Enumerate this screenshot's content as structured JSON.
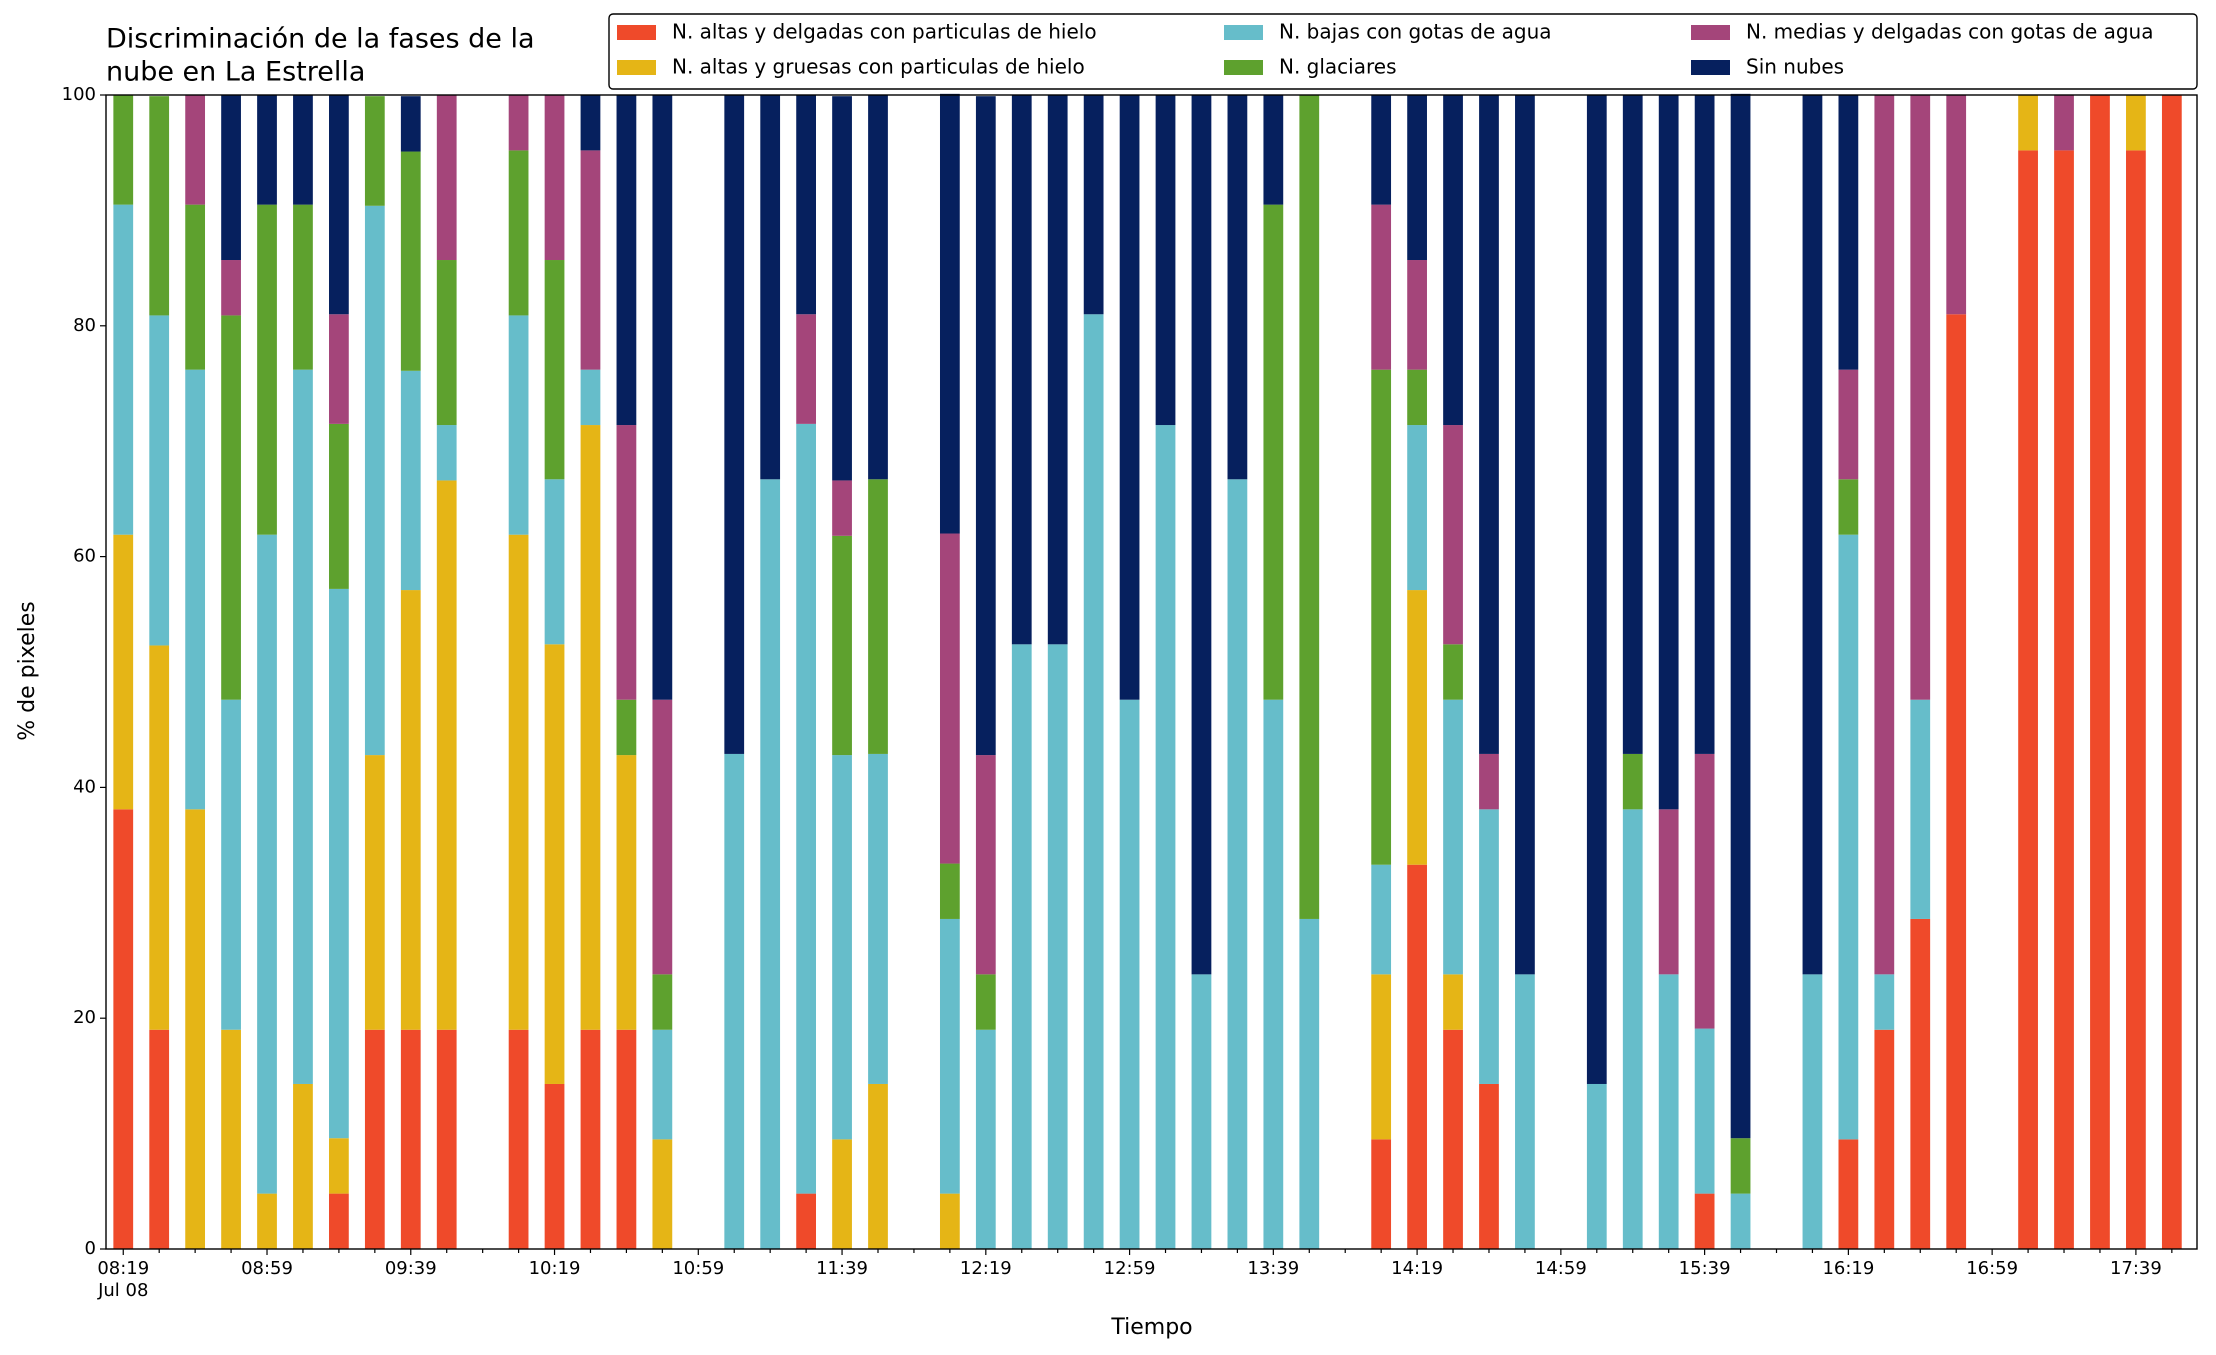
{
  "chart_data": {
    "type": "stacked_bar",
    "title": [
      "Discriminación de la fases de la",
      "nube en La Estrella"
    ],
    "xlabel": "Tiempo",
    "ylabel": "% de pixeles",
    "x_sublabel": "Jul 08",
    "categories": [
      "08:19",
      null,
      null,
      null,
      "08:59",
      null,
      null,
      null,
      "09:39",
      null,
      null,
      null,
      "10:19",
      null,
      null,
      null,
      "10:59",
      null,
      null,
      null,
      "11:39",
      null,
      null,
      null,
      "12:19",
      null,
      null,
      null,
      "12:59",
      null,
      null,
      null,
      "13:39",
      null,
      null,
      null,
      "14:19",
      null,
      null,
      null,
      "14:59",
      null,
      null,
      null,
      "15:39",
      null,
      null,
      null,
      "16:19",
      null,
      null,
      null,
      "16:59",
      null,
      null,
      null,
      "17:39",
      null
    ],
    "ylim": [
      0,
      100
    ],
    "yticks": [
      0,
      20,
      40,
      60,
      80,
      100
    ],
    "legend": "top-right",
    "series": [
      {
        "name": "N. altas y delgadas con particulas de hielo",
        "color": "#ef4a2a",
        "values": [
          38.1,
          19.0,
          0,
          0,
          0,
          0,
          4.8,
          19.0,
          19.0,
          19.0,
          null,
          19.0,
          14.3,
          19.0,
          19.0,
          0,
          null,
          0,
          0,
          4.8,
          0,
          0,
          null,
          0,
          0,
          0,
          0,
          0,
          0,
          0,
          0,
          0,
          0,
          0,
          null,
          9.5,
          33.3,
          19.0,
          14.3,
          0,
          null,
          0,
          0,
          0,
          4.8,
          0,
          null,
          0,
          9.5,
          19.0,
          28.6,
          81.0,
          null,
          95.2,
          95.2,
          100,
          95.2,
          100
        ]
      },
      {
        "name": "N. altas y gruesas con particulas de hielo",
        "color": "#e5b516",
        "values": [
          23.8,
          33.3,
          38.1,
          19.0,
          4.8,
          14.3,
          4.8,
          23.8,
          38.1,
          47.6,
          null,
          42.9,
          38.1,
          52.4,
          23.8,
          9.5,
          null,
          0,
          0,
          0,
          9.5,
          14.3,
          null,
          4.8,
          0,
          0,
          0,
          0,
          0,
          0,
          0,
          0,
          0,
          0,
          null,
          14.3,
          23.8,
          4.8,
          0,
          0,
          null,
          0,
          0,
          0,
          0,
          0,
          null,
          0,
          0,
          0,
          0,
          0,
          null,
          4.8,
          0,
          0,
          4.8,
          0
        ]
      },
      {
        "name": "N. bajas con gotas de agua",
        "color": "#66bdca",
        "values": [
          28.6,
          28.6,
          38.1,
          28.6,
          57.1,
          61.9,
          47.6,
          47.6,
          19.0,
          4.8,
          null,
          19.0,
          14.3,
          4.8,
          0,
          9.5,
          null,
          42.9,
          66.7,
          66.7,
          33.3,
          28.6,
          null,
          23.8,
          19.0,
          52.4,
          52.4,
          81.0,
          47.6,
          71.4,
          23.8,
          66.7,
          47.6,
          28.6,
          null,
          9.5,
          14.3,
          23.8,
          23.8,
          23.8,
          null,
          14.3,
          38.1,
          23.8,
          14.3,
          4.8,
          null,
          23.8,
          52.4,
          4.8,
          19.0,
          0,
          null,
          0,
          0,
          0,
          0,
          0
        ]
      },
      {
        "name": "N. glaciares",
        "color": "#5ea12e",
        "values": [
          9.5,
          19.0,
          14.3,
          33.3,
          28.6,
          14.3,
          14.3,
          9.5,
          19.0,
          14.3,
          null,
          14.3,
          19.0,
          0,
          4.8,
          4.8,
          null,
          0,
          0,
          0,
          19.0,
          23.8,
          null,
          4.8,
          4.8,
          0,
          0,
          0,
          0,
          0,
          0,
          0,
          42.9,
          71.4,
          null,
          42.9,
          4.8,
          4.8,
          0,
          0,
          null,
          0,
          4.8,
          0,
          0,
          4.8,
          null,
          0,
          4.8,
          0,
          0,
          0,
          null,
          0,
          0,
          0,
          0,
          0
        ]
      },
      {
        "name": "N. medias y delgadas con gotas de agua",
        "color": "#a4457a",
        "values": [
          0,
          0,
          9.5,
          4.8,
          0,
          0,
          9.5,
          0,
          0,
          14.3,
          null,
          4.8,
          14.3,
          19.0,
          23.8,
          23.8,
          null,
          0,
          0,
          9.5,
          4.8,
          0,
          null,
          28.6,
          19.0,
          0,
          0,
          0,
          0,
          0,
          0,
          0,
          0,
          0,
          null,
          14.3,
          9.5,
          19.0,
          4.8,
          0,
          null,
          0,
          0,
          14.3,
          23.8,
          0,
          null,
          0,
          9.5,
          76.2,
          52.4,
          19.0,
          null,
          0,
          4.8,
          0,
          0,
          0
        ]
      },
      {
        "name": "Sin nubes",
        "color": "#06205e",
        "values": [
          0,
          0,
          0,
          14.3,
          9.5,
          9.5,
          19.0,
          0,
          4.8,
          0,
          null,
          0,
          0,
          4.8,
          28.6,
          52.4,
          null,
          57.1,
          33.3,
          19.0,
          33.3,
          33.3,
          null,
          38.1,
          57.1,
          47.6,
          47.6,
          19.0,
          52.4,
          28.6,
          76.2,
          33.3,
          9.5,
          0,
          null,
          9.5,
          14.3,
          28.6,
          57.1,
          76.2,
          null,
          85.7,
          57.1,
          61.9,
          57.1,
          90.5,
          null,
          76.2,
          23.8,
          0,
          0,
          0,
          null,
          0,
          0,
          0,
          0,
          0
        ]
      }
    ]
  }
}
